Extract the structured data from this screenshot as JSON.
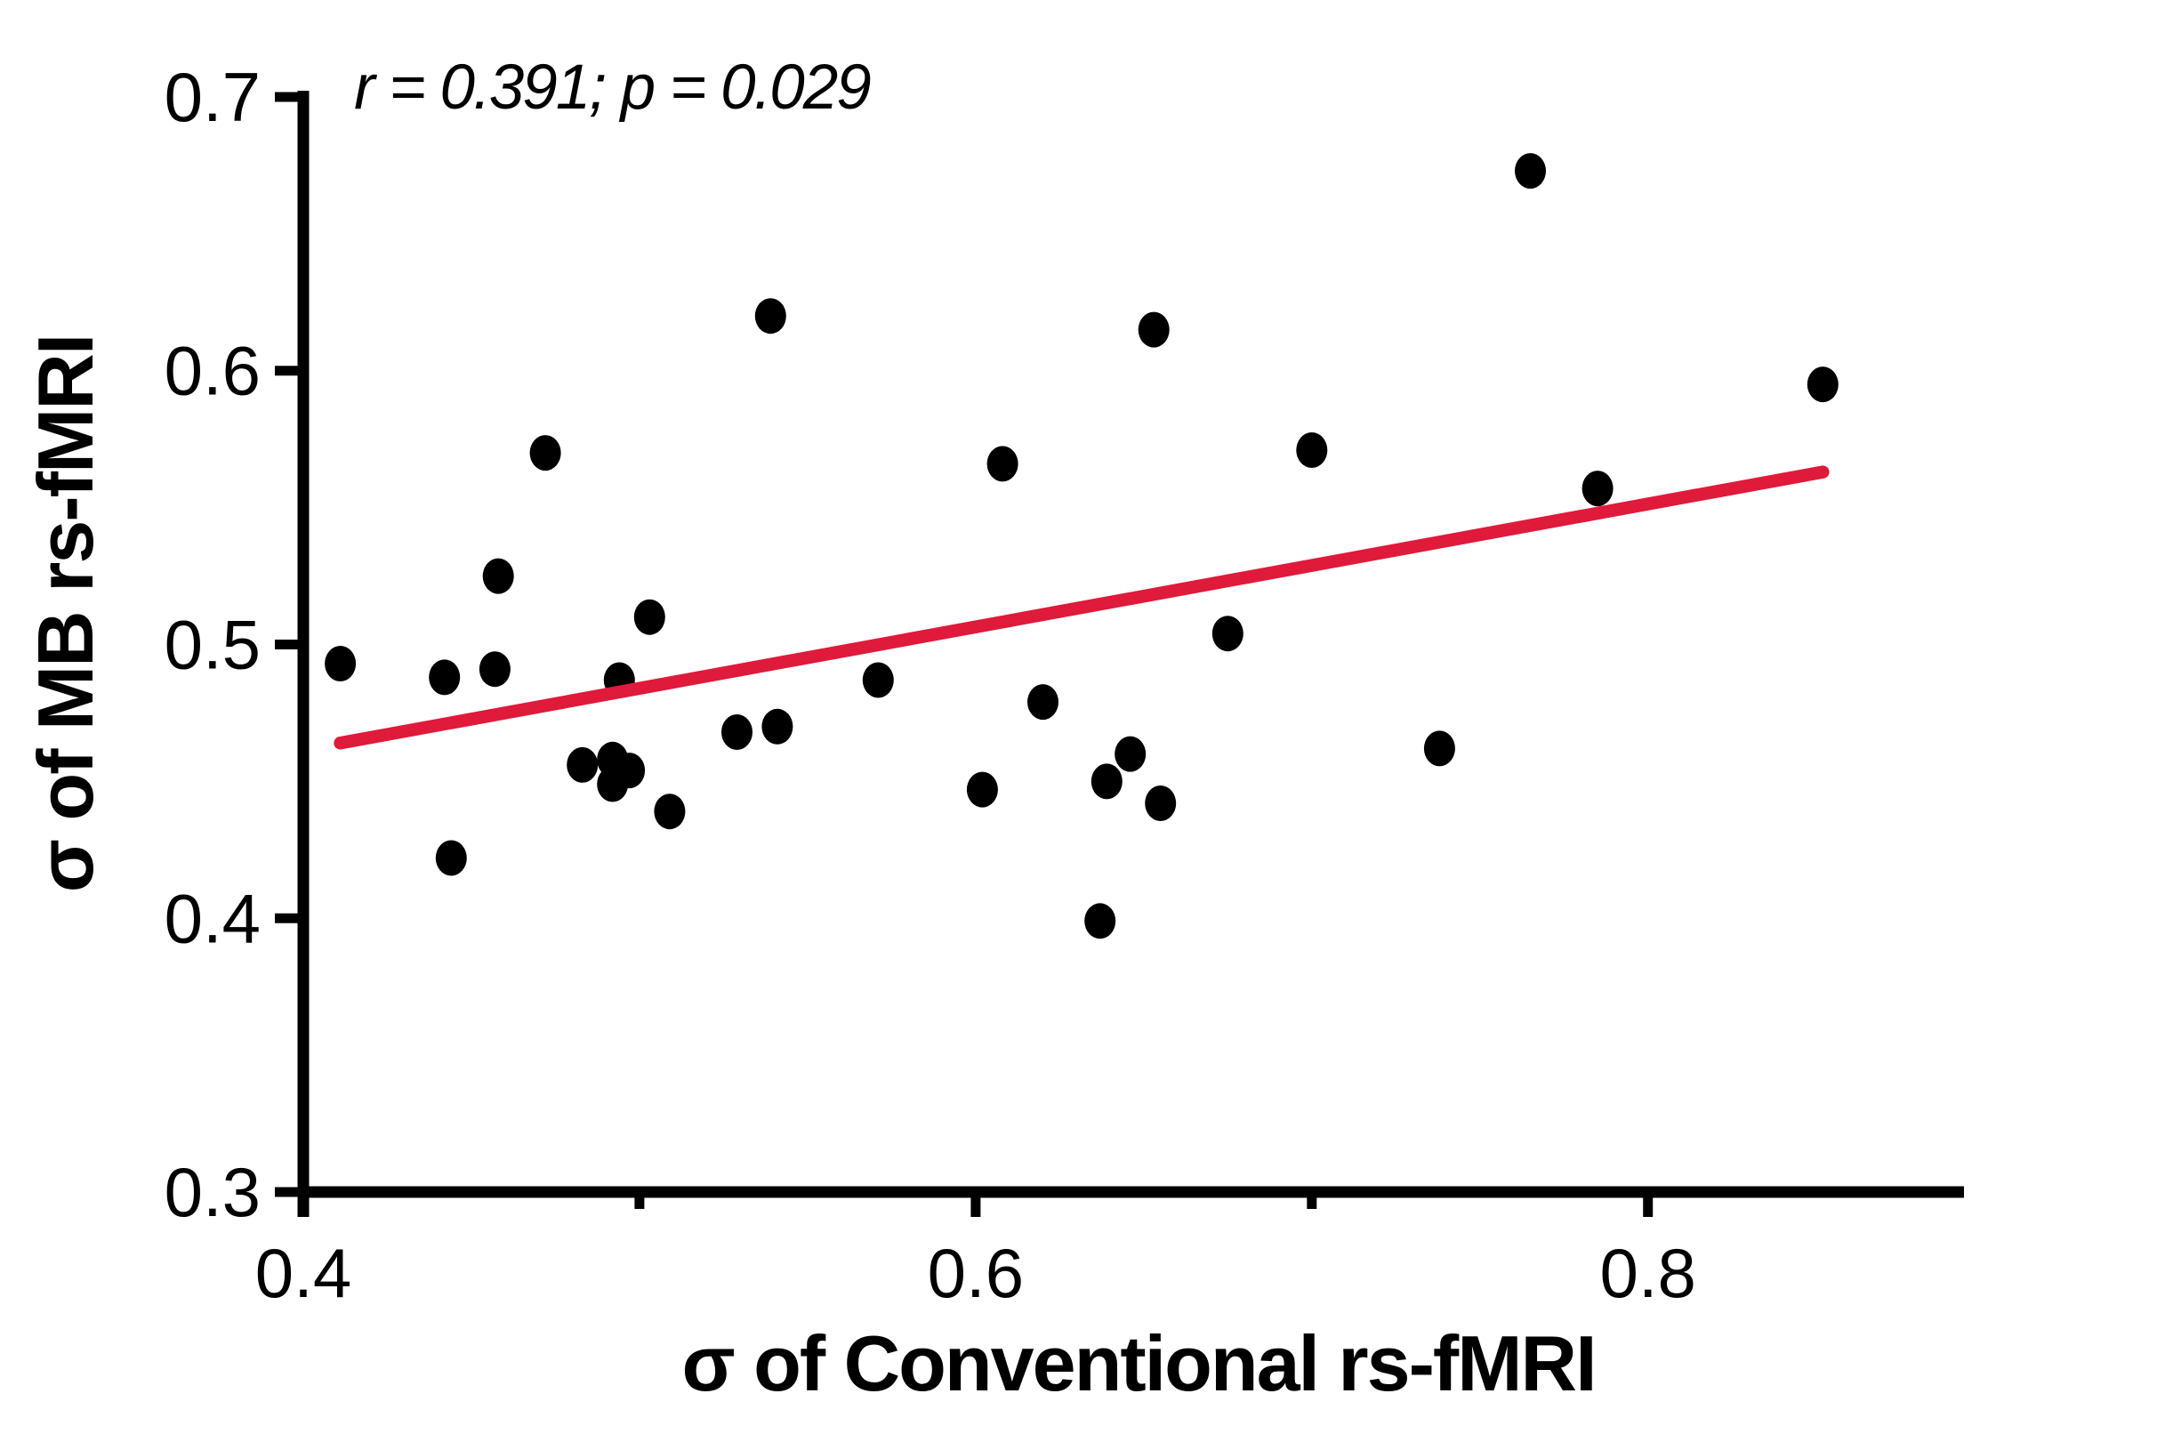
{
  "figure": {
    "background": "#ffffff"
  },
  "stats": {
    "r": "0.391",
    "p": "0.029"
  },
  "chart_data": {
    "type": "scatter",
    "title": "",
    "annotation": "r = 0.391; p = 0.029",
    "xlabel": "σ of Conventional rs-fMRI",
    "ylabel": "σ of MB rs-fMRI",
    "grid": false,
    "legend": "none",
    "x_axis": {
      "min": 0.4,
      "max": 0.894,
      "major_ticks": [
        0.4,
        0.6,
        0.8
      ],
      "minor_ticks": [
        0.5,
        0.7
      ],
      "tick_labels": [
        "0.4",
        "0.6",
        "0.8"
      ]
    },
    "y_axis": {
      "min": 0.3,
      "max": 0.7,
      "ticks": [
        0.3,
        0.4,
        0.5,
        0.6,
        0.7
      ],
      "tick_labels": [
        "0.3",
        "0.4",
        "0.5",
        "0.6",
        "0.7"
      ]
    },
    "points": [
      [
        0.539,
        0.62
      ],
      [
        0.472,
        0.57
      ],
      [
        0.653,
        0.615
      ],
      [
        0.7,
        0.571
      ],
      [
        0.608,
        0.566
      ],
      [
        0.765,
        0.673
      ],
      [
        0.852,
        0.595
      ],
      [
        0.458,
        0.525
      ],
      [
        0.503,
        0.51
      ],
      [
        0.411,
        0.493
      ],
      [
        0.442,
        0.488
      ],
      [
        0.457,
        0.491
      ],
      [
        0.494,
        0.487
      ],
      [
        0.571,
        0.487
      ],
      [
        0.62,
        0.479
      ],
      [
        0.675,
        0.504
      ],
      [
        0.646,
        0.46
      ],
      [
        0.639,
        0.45
      ],
      [
        0.655,
        0.442
      ],
      [
        0.602,
        0.447
      ],
      [
        0.738,
        0.462
      ],
      [
        0.785,
        0.557
      ],
      [
        0.444,
        0.422
      ],
      [
        0.637,
        0.399
      ],
      [
        0.483,
        0.456
      ],
      [
        0.492,
        0.458
      ],
      [
        0.497,
        0.454
      ],
      [
        0.492,
        0.449
      ],
      [
        0.509,
        0.439
      ],
      [
        0.529,
        0.468
      ],
      [
        0.541,
        0.47
      ]
    ],
    "regression_line": {
      "x1": 0.411,
      "y1": 0.464,
      "x2": 0.852,
      "y2": 0.563
    },
    "colors": {
      "points": "#000000",
      "line": "#DF1A3B",
      "axis": "#000000"
    }
  }
}
